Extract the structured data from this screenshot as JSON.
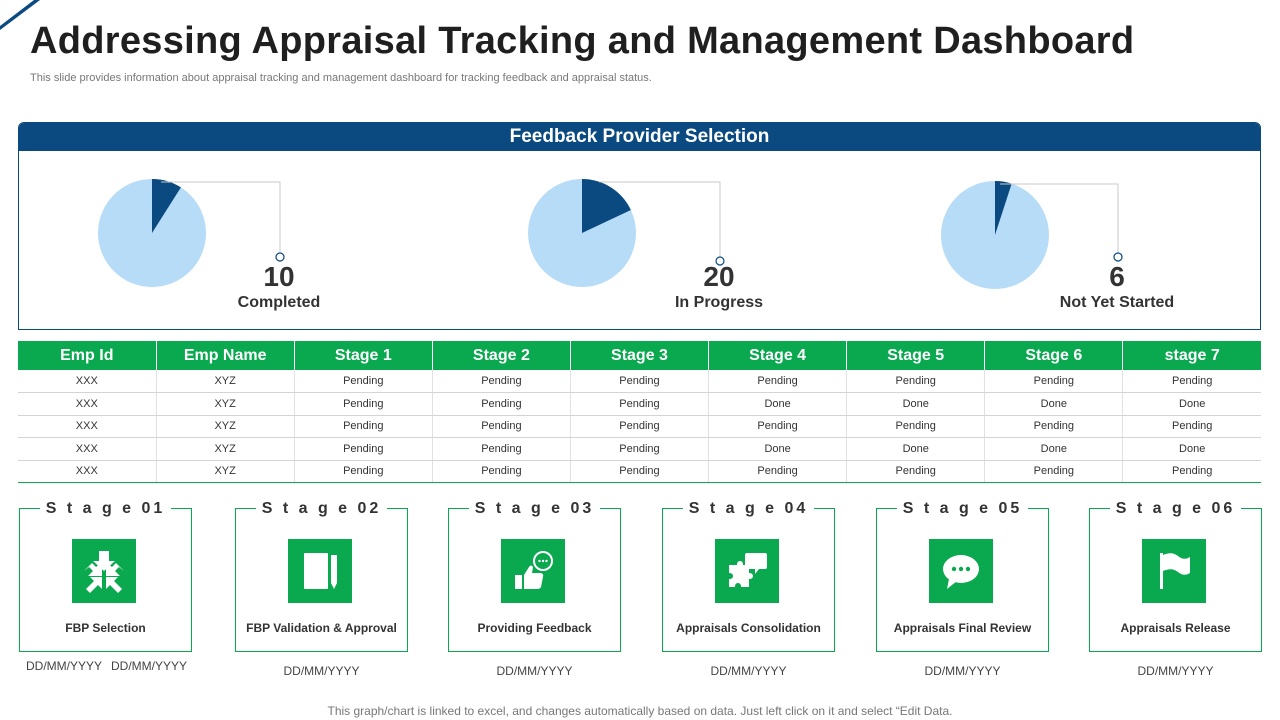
{
  "title": "Addressing Appraisal Tracking and Management Dashboard",
  "subtitle": "This slide provides information about appraisal tracking and management dashboard for tracking feedback and appraisal status.",
  "panel_title": "Feedback Provider Selection",
  "colors": {
    "navy": "#0b4a80",
    "light_blue": "#b7dcf8",
    "green": "#0aa84f"
  },
  "chart_data": [
    {
      "type": "pie",
      "value": 10,
      "label": "Completed",
      "highlight_fraction": 0.09
    },
    {
      "type": "pie",
      "value": 20,
      "label": "In Progress",
      "highlight_fraction": 0.18
    },
    {
      "type": "pie",
      "value": 6,
      "label": "Not Yet Started",
      "highlight_fraction": 0.05
    }
  ],
  "table": {
    "headers": [
      "Emp Id",
      "Emp Name",
      "Stage 1",
      "Stage 2",
      "Stage 3",
      "Stage 4",
      "Stage 5",
      "Stage 6",
      "stage 7"
    ],
    "rows": [
      [
        "XXX",
        "XYZ",
        "Pending",
        "Pending",
        "Pending",
        "Pending",
        "Pending",
        "Pending",
        "Pending"
      ],
      [
        "XXX",
        "XYZ",
        "Pending",
        "Pending",
        "Pending",
        "Done",
        "Done",
        "Done",
        "Done"
      ],
      [
        "XXX",
        "XYZ",
        "Pending",
        "Pending",
        "Pending",
        "Pending",
        "Pending",
        "Pending",
        "Pending"
      ],
      [
        "XXX",
        "XYZ",
        "Pending",
        "Pending",
        "Pending",
        "Done",
        "Done",
        "Done",
        "Done"
      ],
      [
        "XXX",
        "XYZ",
        "Pending",
        "Pending",
        "Pending",
        "Pending",
        "Pending",
        "Pending",
        "Pending"
      ]
    ]
  },
  "stages": [
    {
      "title": "S t a g e 01",
      "name": "FBP  Selection",
      "icon": "arrows-converge-icon"
    },
    {
      "title": "S t a g e  02",
      "name": "FBP Validation & Approval",
      "icon": "document-pen-icon"
    },
    {
      "title": "S t a g e 03",
      "name": "Providing Feedback",
      "icon": "thumbs-up-chat-icon"
    },
    {
      "title": "S t a g e 04",
      "name": "Appraisals Consolidation",
      "icon": "puzzle-chat-icon"
    },
    {
      "title": "S t a g e 05",
      "name": "Appraisals Final Review",
      "icon": "speech-bubble-icon"
    },
    {
      "title": "S t a g e 06",
      "name": "Appraisals Release",
      "icon": "flag-icon"
    }
  ],
  "dates": {
    "stage1": [
      "DD/MM/YYYY",
      "DD/MM/YYYY"
    ],
    "others": [
      "DD/MM/YYYY",
      "DD/MM/YYYY",
      "DD/MM/YYYY",
      "DD/MM/YYYY",
      "DD/MM/YYYY"
    ]
  },
  "footer": "This graph/chart is linked to excel,  and changes automatically based on data. Just left click on it and select “Edit Data."
}
